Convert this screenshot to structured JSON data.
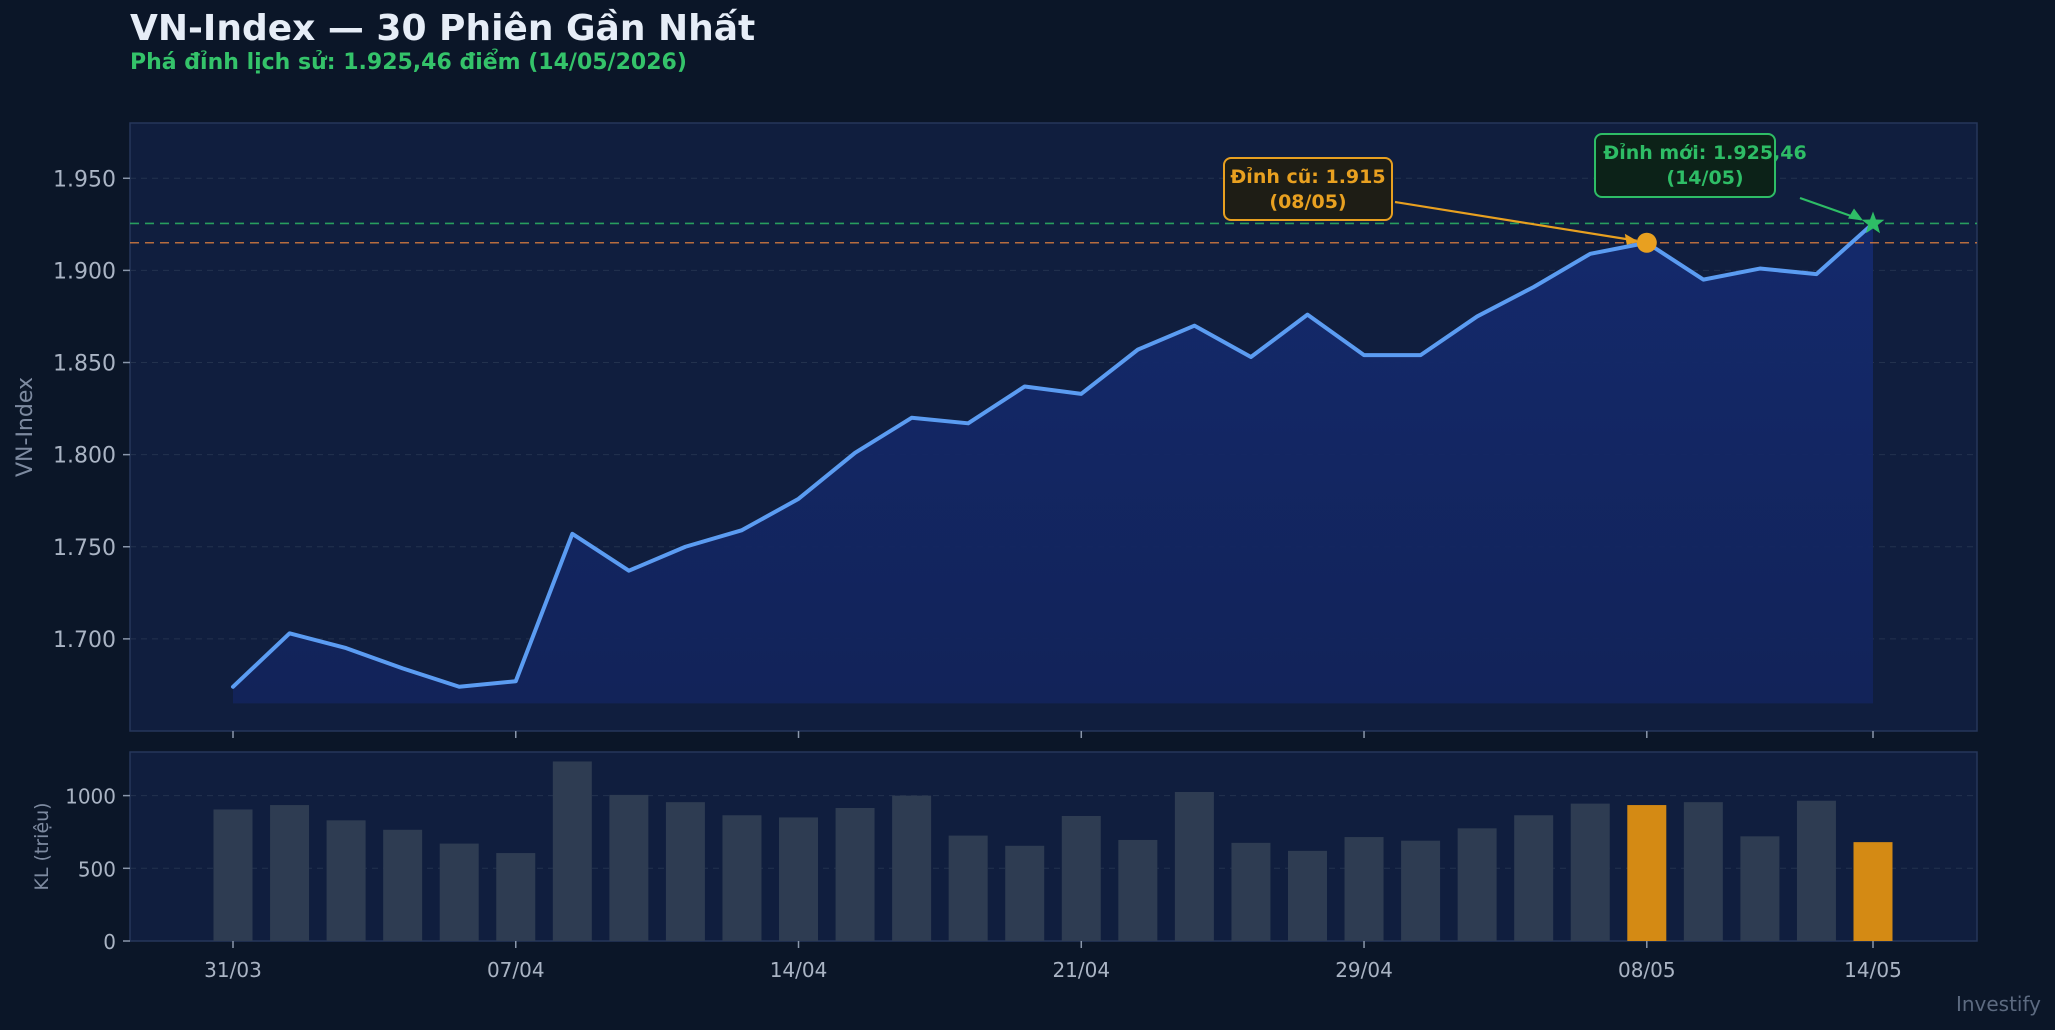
{
  "title": "VN-Index — 30 Phiên Gần Nhất",
  "subtitle": "Phá đỉnh lịch sử: 1.925,46 điểm (14/05/2026)",
  "watermark": "Investify",
  "colors": {
    "background": "#0b1628",
    "panel": "#101e3e",
    "line": "#5b9cf2",
    "fill": "#13245c",
    "old_peak": "#e8a020",
    "new_peak": "#2ebd66",
    "volume_bar": "#2e3c52",
    "volume_highlight": "#d48a14"
  },
  "chart_data": [
    {
      "type": "line",
      "ylabel": "VN-Index",
      "ylim": [
        1650,
        1980
      ],
      "y_ticks": [
        1700,
        1750,
        1800,
        1850,
        1900,
        1950
      ],
      "y_tick_labels": [
        "1.700",
        "1.750",
        "1.800",
        "1.850",
        "1.900",
        "1.950"
      ],
      "grid": true,
      "x_tick_labels": [
        {
          "index": 0,
          "label": "31/03"
        },
        {
          "index": 5,
          "label": "07/04"
        },
        {
          "index": 10,
          "label": "14/04"
        },
        {
          "index": 15,
          "label": "21/04"
        },
        {
          "index": 20,
          "label": "29/04"
        },
        {
          "index": 25,
          "label": "08/05"
        },
        {
          "index": 29,
          "label": "14/05"
        }
      ],
      "values": [
        1674,
        1703,
        1695,
        1684,
        1674,
        1677,
        1757,
        1737,
        1750,
        1759,
        1776,
        1801,
        1820,
        1817,
        1837,
        1833,
        1857,
        1870,
        1853,
        1876,
        1854,
        1854,
        1875,
        1891,
        1909,
        1915,
        1895,
        1901,
        1898,
        1925.46
      ],
      "reference_lines": [
        {
          "value": 1925.46,
          "color": "#2ebd66"
        },
        {
          "value": 1915,
          "color": "#e08040"
        }
      ],
      "annotations": [
        {
          "index": 25,
          "value": 1915,
          "line1": "Đỉnh cũ: 1.915",
          "line2": "(08/05)",
          "marker": "circle"
        },
        {
          "index": 29,
          "value": 1925.46,
          "line1": "Đỉnh mới: 1.925,46",
          "line2": "(14/05)",
          "marker": "star"
        }
      ]
    },
    {
      "type": "bar",
      "ylabel": "KL (triệu)",
      "ylim": [
        0,
        1300
      ],
      "y_ticks": [
        0,
        500,
        1000
      ],
      "y_tick_labels": [
        "0",
        "500",
        "1000"
      ],
      "grid": true,
      "values": [
        905,
        935,
        830,
        765,
        670,
        605,
        1235,
        1005,
        955,
        865,
        850,
        915,
        1000,
        725,
        655,
        860,
        695,
        1025,
        675,
        620,
        715,
        690,
        775,
        865,
        945,
        935,
        955,
        720,
        965,
        680
      ],
      "highlight_indices": [
        25,
        29
      ]
    }
  ]
}
